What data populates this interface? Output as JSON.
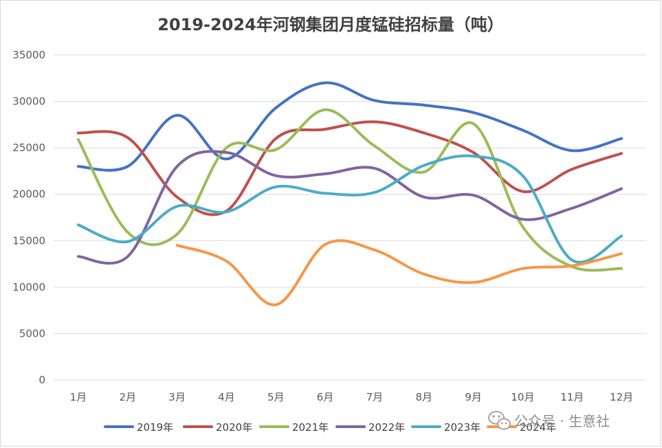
{
  "chart_data": {
    "type": "line",
    "title": "2019-2024年河钢集团月度锰硅招标量（吨）",
    "categories": [
      "1月",
      "2月",
      "3月",
      "4月",
      "5月",
      "6月",
      "7月",
      "8月",
      "9月",
      "10月",
      "11月",
      "12月"
    ],
    "ylim": [
      0,
      35000
    ],
    "yticks": [
      0,
      5000,
      10000,
      15000,
      20000,
      25000,
      30000,
      35000
    ],
    "grid": true,
    "legend_position": "bottom",
    "series": [
      {
        "name": "2019年",
        "color": "#4472C4",
        "values": [
          23000,
          23000,
          28500,
          23800,
          29300,
          32000,
          30100,
          29600,
          28800,
          26900,
          24700,
          26000
        ]
      },
      {
        "name": "2020年",
        "color": "#C0504D",
        "values": [
          26600,
          26100,
          19700,
          18200,
          26000,
          27000,
          27800,
          26600,
          24500,
          20300,
          22700,
          24400
        ]
      },
      {
        "name": "2021年",
        "color": "#9BBB59",
        "values": [
          25900,
          15900,
          15700,
          25000,
          24800,
          29100,
          25200,
          22400,
          27600,
          16500,
          12200,
          12000
        ]
      },
      {
        "name": "2022年",
        "color": "#8064A2",
        "values": [
          13300,
          13300,
          23000,
          24500,
          22000,
          22200,
          22800,
          19700,
          19900,
          17300,
          18500,
          20600
        ]
      },
      {
        "name": "2023年",
        "color": "#4BACC6",
        "values": [
          16700,
          14900,
          18700,
          18100,
          20800,
          20100,
          20200,
          23100,
          24100,
          22000,
          12900,
          15500
        ]
      },
      {
        "name": "2024年",
        "color": "#F79646",
        "values": [
          null,
          null,
          14500,
          12800,
          8100,
          14600,
          14000,
          11400,
          10500,
          12000,
          12300,
          13600
        ]
      }
    ],
    "watermark": "公众号 · 生意社"
  }
}
